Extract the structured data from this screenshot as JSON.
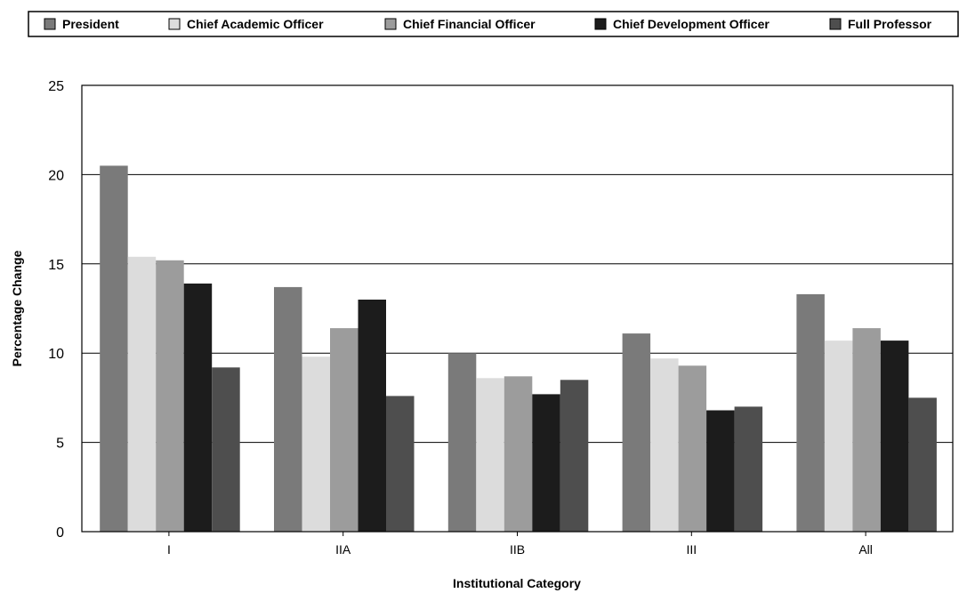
{
  "chart_data": {
    "type": "bar",
    "title": "",
    "xlabel": "Institutional Category",
    "ylabel": "Percentage Change",
    "categories": [
      "I",
      "IIA",
      "IIB",
      "III",
      "All"
    ],
    "ylim": [
      0,
      25
    ],
    "yticks": [
      0,
      5,
      10,
      15,
      20,
      25
    ],
    "grid": true,
    "legend_position": "top",
    "series": [
      {
        "name": "President",
        "color": "#7a7a7a",
        "values": [
          20.5,
          13.7,
          10.0,
          11.1,
          13.3
        ]
      },
      {
        "name": "Chief Academic Officer",
        "color": "#dcdcdc",
        "values": [
          15.4,
          9.8,
          8.6,
          9.7,
          10.7
        ]
      },
      {
        "name": "Chief Financial Officer",
        "color": "#9c9c9c",
        "values": [
          15.2,
          11.4,
          8.7,
          9.3,
          11.4
        ]
      },
      {
        "name": "Chief Development Officer",
        "color": "#1c1c1c",
        "values": [
          13.9,
          13.0,
          7.7,
          6.8,
          10.7
        ]
      },
      {
        "name": "Full Professor",
        "color": "#4e4e4e",
        "values": [
          9.2,
          7.6,
          8.5,
          7.0,
          7.5
        ]
      }
    ]
  }
}
